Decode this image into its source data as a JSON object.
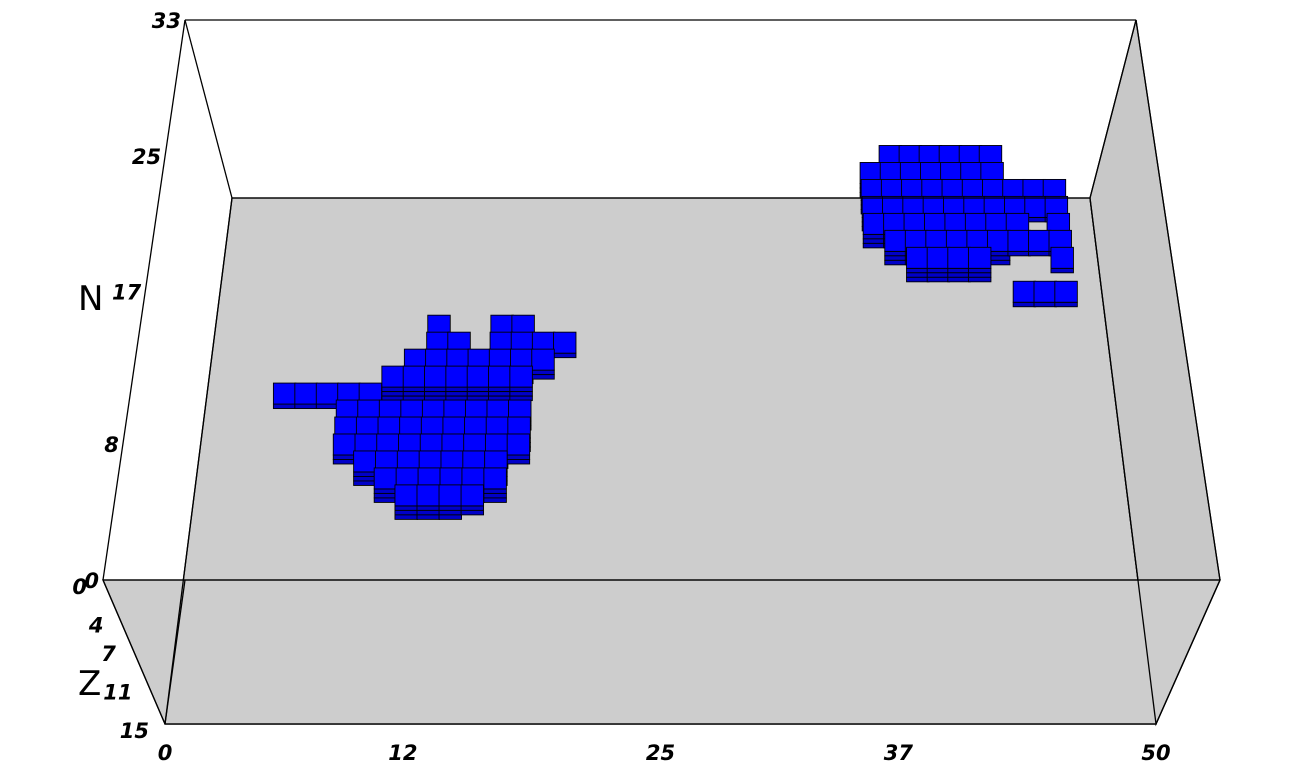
{
  "chart_data": {
    "type": "3d-voxel",
    "axes": {
      "x": {
        "label": "",
        "ticks": [
          "0",
          "12",
          "25",
          "37",
          "50"
        ],
        "range": [
          0,
          50
        ]
      },
      "y": {
        "label": "N",
        "ticks": [
          "0",
          "8",
          "17",
          "25",
          "33"
        ],
        "range": [
          0,
          33
        ]
      },
      "z": {
        "label": "Z",
        "ticks": [
          "0",
          "4",
          "7",
          "11",
          "15"
        ],
        "range": [
          0,
          15
        ]
      }
    },
    "series": [
      {
        "color": "#0000ff",
        "columns": [
          [
            7,
            9,
            1
          ],
          [
            8,
            9,
            1
          ],
          [
            9,
            9,
            1
          ],
          [
            10,
            9,
            2
          ],
          [
            11,
            9,
            3
          ],
          [
            12,
            8,
            3
          ],
          [
            13,
            8,
            3
          ],
          [
            14,
            8,
            2
          ],
          [
            15,
            8,
            3
          ],
          [
            16,
            8,
            3
          ],
          [
            17,
            8,
            3
          ],
          [
            18,
            8,
            2
          ],
          [
            10,
            8,
            2
          ],
          [
            11,
            8,
            3
          ],
          [
            12,
            7,
            3
          ],
          [
            13,
            7,
            3
          ],
          [
            14,
            7,
            3
          ],
          [
            15,
            7,
            3
          ],
          [
            16,
            7,
            3
          ],
          [
            17,
            7,
            3
          ],
          [
            18,
            7,
            3
          ],
          [
            10,
            7,
            2
          ],
          [
            11,
            7,
            3
          ],
          [
            12,
            6,
            3
          ],
          [
            13,
            6,
            3
          ],
          [
            14,
            6,
            3
          ],
          [
            15,
            6,
            3
          ],
          [
            16,
            6,
            3
          ],
          [
            17,
            6,
            3
          ],
          [
            18,
            6,
            2
          ],
          [
            10,
            6,
            2
          ],
          [
            11,
            6,
            3
          ],
          [
            12,
            5,
            3
          ],
          [
            13,
            5,
            3
          ],
          [
            14,
            5,
            3
          ],
          [
            15,
            5,
            3
          ],
          [
            16,
            5,
            3
          ],
          [
            17,
            5,
            3
          ],
          [
            11,
            5,
            3
          ],
          [
            12,
            4,
            3
          ],
          [
            13,
            4,
            3
          ],
          [
            14,
            4,
            3
          ],
          [
            15,
            4,
            3
          ],
          [
            16,
            4,
            3
          ],
          [
            17,
            4,
            3
          ],
          [
            13,
            3,
            3
          ],
          [
            14,
            3,
            3
          ],
          [
            15,
            3,
            3
          ],
          [
            16,
            3,
            2
          ],
          [
            12,
            10,
            3
          ],
          [
            13,
            10,
            3
          ],
          [
            14,
            10,
            3
          ],
          [
            15,
            10,
            3
          ],
          [
            16,
            10,
            3
          ],
          [
            17,
            10,
            3
          ],
          [
            18,
            10,
            3
          ],
          [
            13,
            11,
            3
          ],
          [
            14,
            11,
            3
          ],
          [
            15,
            11,
            2
          ],
          [
            16,
            11,
            3
          ],
          [
            17,
            11,
            3
          ],
          [
            18,
            11,
            3
          ],
          [
            19,
            11,
            2
          ],
          [
            14,
            12,
            2
          ],
          [
            15,
            12,
            2
          ],
          [
            17,
            12,
            2
          ],
          [
            18,
            12,
            2
          ],
          [
            14,
            13,
            1
          ],
          [
            17,
            13,
            1
          ],
          [
            18,
            13,
            1
          ],
          [
            19,
            12,
            1
          ],
          [
            20,
            12,
            1
          ]
        ]
      },
      {
        "color": "#0000ff",
        "columns": [
          [
            35,
            19,
            3
          ],
          [
            36,
            19,
            3
          ],
          [
            37,
            19,
            3
          ],
          [
            38,
            19,
            3
          ],
          [
            39,
            19,
            3
          ],
          [
            40,
            19,
            3
          ],
          [
            41,
            19,
            3
          ],
          [
            42,
            19,
            2
          ],
          [
            35,
            20,
            3
          ],
          [
            36,
            20,
            3
          ],
          [
            37,
            20,
            3
          ],
          [
            38,
            20,
            3
          ],
          [
            39,
            20,
            3
          ],
          [
            40,
            20,
            3
          ],
          [
            41,
            20,
            3
          ],
          [
            42,
            20,
            2
          ],
          [
            35,
            21,
            3
          ],
          [
            36,
            21,
            3
          ],
          [
            37,
            21,
            3
          ],
          [
            38,
            21,
            3
          ],
          [
            39,
            21,
            3
          ],
          [
            40,
            21,
            3
          ],
          [
            41,
            21,
            3
          ],
          [
            42,
            21,
            2
          ],
          [
            43,
            21,
            1
          ],
          [
            35,
            22,
            3
          ],
          [
            36,
            22,
            3
          ],
          [
            37,
            22,
            3
          ],
          [
            38,
            22,
            3
          ],
          [
            39,
            22,
            3
          ],
          [
            40,
            22,
            3
          ],
          [
            41,
            22,
            3
          ],
          [
            36,
            23,
            3
          ],
          [
            37,
            23,
            3
          ],
          [
            38,
            23,
            3
          ],
          [
            39,
            23,
            3
          ],
          [
            40,
            23,
            3
          ],
          [
            41,
            23,
            2
          ],
          [
            36,
            18,
            3
          ],
          [
            37,
            18,
            3
          ],
          [
            38,
            18,
            3
          ],
          [
            39,
            18,
            3
          ],
          [
            40,
            18,
            3
          ],
          [
            41,
            18,
            3
          ],
          [
            37,
            17,
            3
          ],
          [
            38,
            17,
            3
          ],
          [
            39,
            17,
            3
          ],
          [
            40,
            17,
            3
          ],
          [
            42,
            18,
            1
          ],
          [
            43,
            18,
            1
          ],
          [
            44,
            18,
            1
          ],
          [
            44,
            17,
            1
          ],
          [
            44,
            19,
            1
          ],
          [
            44,
            20,
            1
          ],
          [
            43,
            20,
            1
          ],
          [
            44,
            21,
            1
          ],
          [
            42,
            15,
            1
          ],
          [
            43,
            15,
            1
          ],
          [
            44,
            15,
            1
          ]
        ]
      }
    ]
  }
}
